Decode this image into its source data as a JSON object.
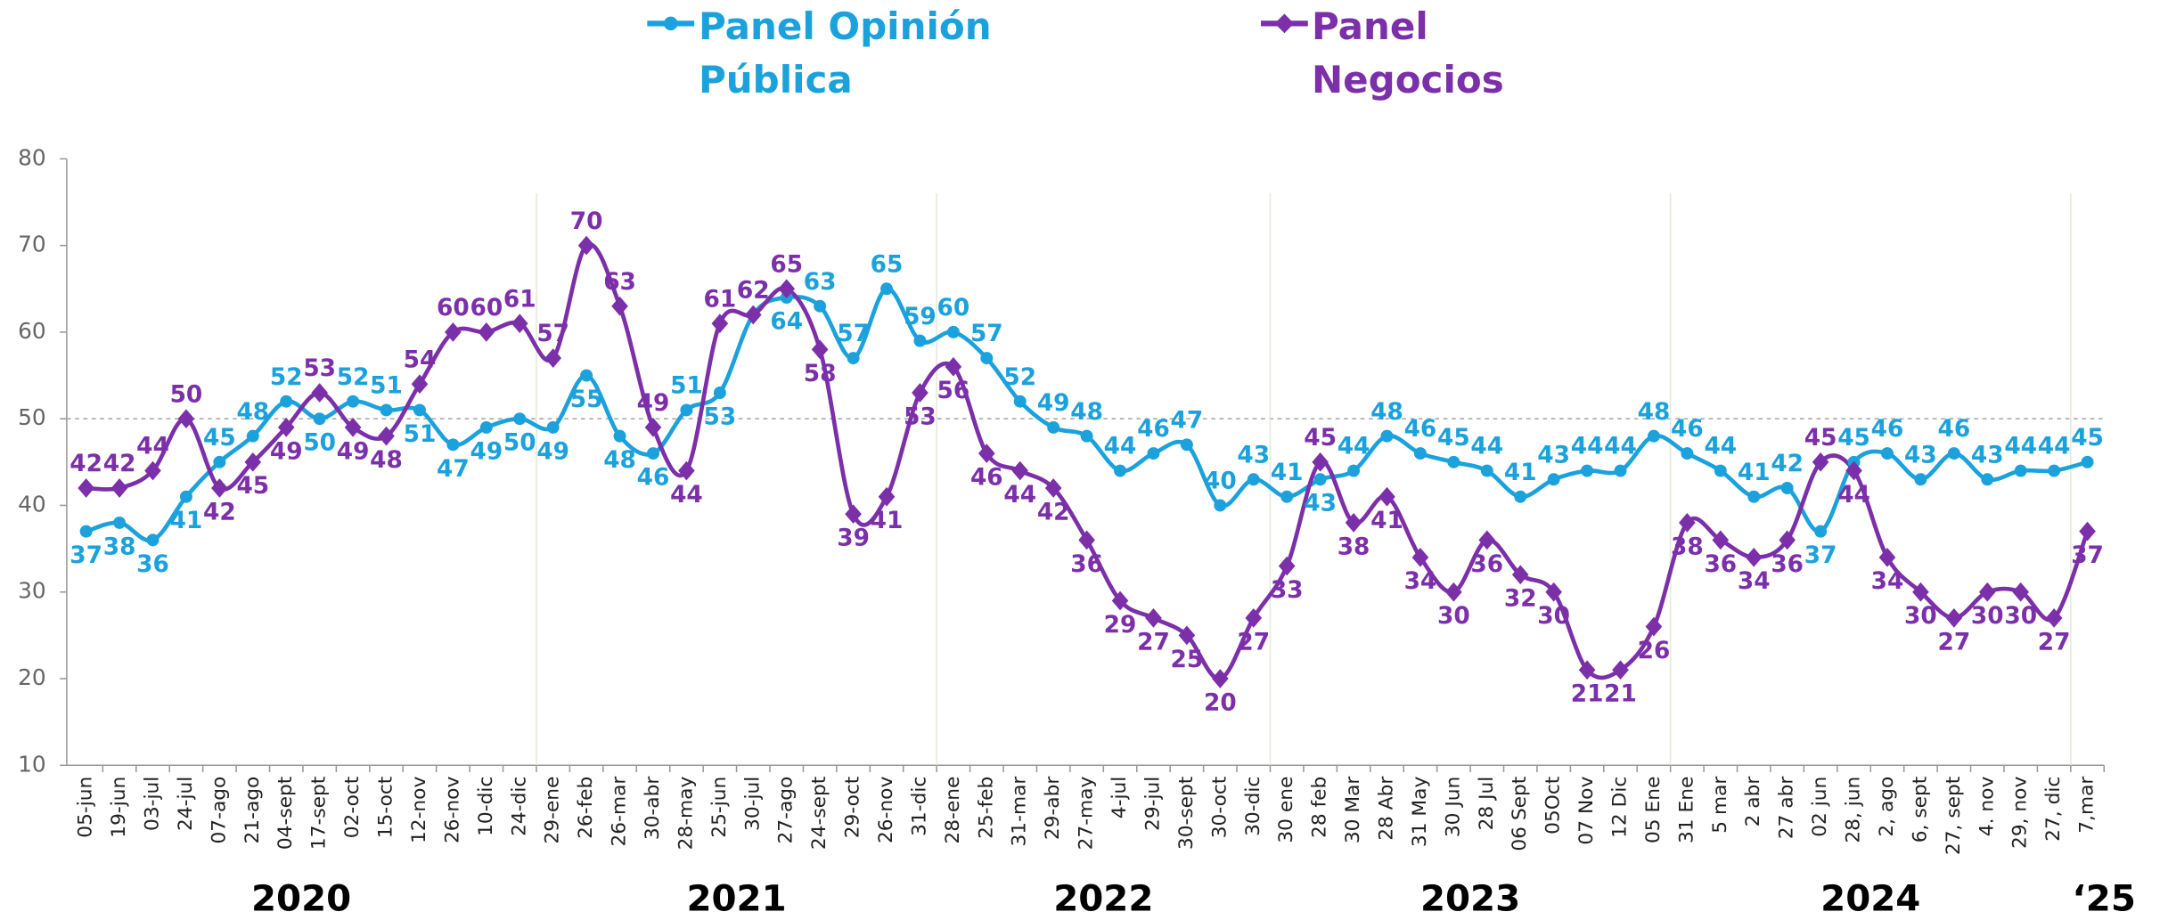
{
  "chart_data": {
    "type": "line",
    "categories": [
      "05-jun",
      "19-jun",
      "03-jul",
      "24-jul",
      "07-ago",
      "21-ago",
      "04-sept",
      "17-sept",
      "02-oct",
      "15-oct",
      "12-nov",
      "26-nov",
      "10-dic",
      "24-dic",
      "29-ene",
      "26-feb",
      "26-mar",
      "30-abr",
      "28-may",
      "25-jun",
      "30-jul",
      "27-ago",
      "24-sept",
      "29-oct",
      "26-nov",
      "31-dic",
      "28-ene",
      "25-feb",
      "31-mar",
      "29-abr",
      "27-may",
      "4-jul",
      "29-jul",
      "30-sept",
      "30-oct",
      "30-dic",
      "30 ene",
      "28 feb",
      "30 Mar",
      "28 Abr",
      "31 May",
      "30 Jun",
      "28 Jul",
      "06 Sept",
      "05Oct",
      "07 Nov",
      "12 Dic",
      "05 Ene",
      "31 Ene",
      "5 mar",
      "2 abr",
      "27 abr",
      "02 jun",
      "28, jun",
      "2, ago",
      "6, sept",
      "27, sept",
      "4. nov",
      "29, nov",
      "27, dic",
      "7,mar"
    ],
    "series": [
      {
        "name": "Panel Opinión Pública",
        "color": "#1ba1db",
        "marker": "circle",
        "values": [
          37,
          38,
          36,
          41,
          45,
          48,
          52,
          50,
          52,
          51,
          51,
          47,
          49,
          50,
          49,
          55,
          48,
          46,
          51,
          53,
          62,
          64,
          63,
          57,
          65,
          59,
          60,
          57,
          52,
          49,
          48,
          44,
          46,
          47,
          40,
          43,
          41,
          43,
          44,
          48,
          46,
          45,
          44,
          41,
          43,
          44,
          44,
          48,
          46,
          44,
          41,
          42,
          37,
          45,
          46,
          43,
          46,
          43,
          44,
          44,
          45
        ]
      },
      {
        "name": "Panel Negocios",
        "color": "#7b2fa8",
        "marker": "diamond",
        "values": [
          42,
          42,
          44,
          50,
          42,
          45,
          49,
          53,
          49,
          48,
          54,
          60,
          60,
          61,
          57,
          70,
          63,
          49,
          44,
          61,
          62,
          65,
          58,
          39,
          41,
          53,
          56,
          46,
          44,
          42,
          36,
          29,
          27,
          25,
          20,
          27,
          33,
          45,
          38,
          41,
          34,
          30,
          36,
          32,
          30,
          21,
          21,
          26,
          38,
          36,
          34,
          36,
          45,
          44,
          34,
          30,
          27,
          30,
          30,
          27,
          37
        ]
      }
    ],
    "ylim": [
      10,
      80
    ],
    "yticks": [
      10,
      20,
      30,
      40,
      50,
      60,
      70,
      80
    ],
    "reference_line": 50,
    "year_labels": [
      "2020",
      "2021",
      "2022",
      "2023",
      "2024",
      "‘25"
    ]
  }
}
